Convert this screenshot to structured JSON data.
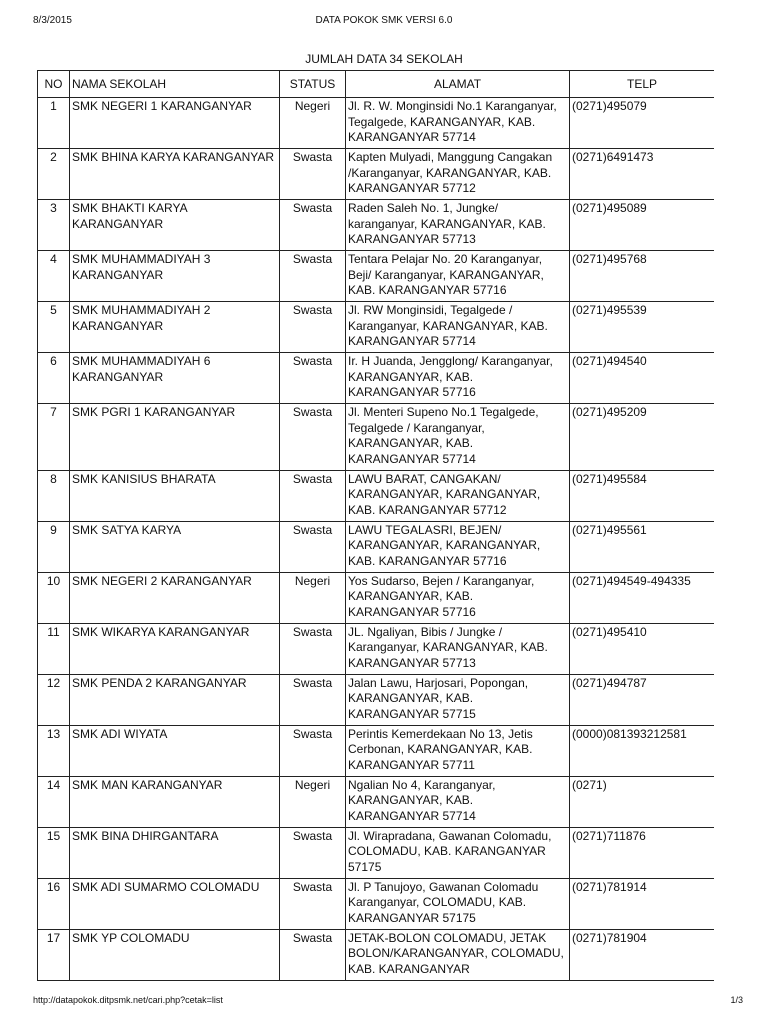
{
  "header": {
    "date": "8/3/2015",
    "title": "DATA POKOK SMK VERSI 6.0"
  },
  "summary": "JUMLAH DATA 34 SEKOLAH",
  "table": {
    "columns": [
      "NO",
      "NAMA SEKOLAH",
      "STATUS",
      "ALAMAT",
      "TELP"
    ],
    "rows": [
      {
        "no": "1",
        "nama": "SMK NEGERI 1 KARANGANYAR",
        "status": "Negeri",
        "alamat": "Jl. R. W. Monginsidi No.1 Karanganyar, Tegalgede, KARANGANYAR, KAB. KARANGANYAR 57714",
        "telp": "(0271)495079"
      },
      {
        "no": "2",
        "nama": "SMK BHINA KARYA KARANGANYAR",
        "status": "Swasta",
        "alamat": "Kapten Mulyadi, Manggung Cangakan /Karanganyar, KARANGANYAR, KAB. KARANGANYAR 57712",
        "telp": "(0271)6491473"
      },
      {
        "no": "3",
        "nama": "SMK BHAKTI KARYA KARANGANYAR",
        "status": "Swasta",
        "alamat": "Raden Saleh No. 1, Jungke/ karanganyar, KARANGANYAR, KAB. KARANGANYAR 57713",
        "telp": "(0271)495089"
      },
      {
        "no": "4",
        "nama": "SMK MUHAMMADIYAH 3 KARANGANYAR",
        "status": "Swasta",
        "alamat": "Tentara Pelajar No. 20 Karanganyar, Beji/ Karanganyar, KARANGANYAR, KAB. KARANGANYAR 57716",
        "telp": "(0271)495768"
      },
      {
        "no": "5",
        "nama": "SMK MUHAMMADIYAH 2 KARANGANYAR",
        "status": "Swasta",
        "alamat": "Jl. RW Monginsidi, Tegalgede / Karanganyar, KARANGANYAR, KAB. KARANGANYAR 57714",
        "telp": "(0271)495539"
      },
      {
        "no": "6",
        "nama": "SMK MUHAMMADIYAH 6 KARANGANYAR",
        "status": "Swasta",
        "alamat": "Ir. H Juanda, Jengglong/ Karanganyar, KARANGANYAR, KAB. KARANGANYAR 57716",
        "telp": "(0271)494540"
      },
      {
        "no": "7",
        "nama": "SMK PGRI 1 KARANGANYAR",
        "status": "Swasta",
        "alamat": "Jl. Menteri Supeno No.1 Tegalgede, Tegalgede / Karanganyar, KARANGANYAR, KAB. KARANGANYAR 57714",
        "telp": "(0271)495209"
      },
      {
        "no": "8",
        "nama": "SMK KANISIUS BHARATA",
        "status": "Swasta",
        "alamat": "LAWU BARAT, CANGAKAN/ KARANGANYAR, KARANGANYAR, KAB. KARANGANYAR 57712",
        "telp": "(0271)495584"
      },
      {
        "no": "9",
        "nama": "SMK SATYA KARYA",
        "status": "Swasta",
        "alamat": "LAWU TEGALASRI, BEJEN/ KARANGANYAR, KARANGANYAR, KAB. KARANGANYAR 57716",
        "telp": "(0271)495561"
      },
      {
        "no": "10",
        "nama": "SMK NEGERI 2 KARANGANYAR",
        "status": "Negeri",
        "alamat": "Yos Sudarso, Bejen / Karanganyar, KARANGANYAR, KAB. KARANGANYAR 57716",
        "telp": "(0271)494549-494335"
      },
      {
        "no": "11",
        "nama": "SMK WIKARYA KARANGANYAR",
        "status": "Swasta",
        "alamat": "JL. Ngaliyan, Bibis / Jungke / Karanganyar, KARANGANYAR, KAB. KARANGANYAR 57713",
        "telp": "(0271)495410"
      },
      {
        "no": "12",
        "nama": "SMK PENDA 2 KARANGANYAR",
        "status": "Swasta",
        "alamat": "Jalan Lawu, Harjosari, Popongan, KARANGANYAR, KAB. KARANGANYAR 57715",
        "telp": "(0271)494787"
      },
      {
        "no": "13",
        "nama": "SMK ADI WIYATA",
        "status": "Swasta",
        "alamat": "Perintis Kemerdekaan No 13, Jetis Cerbonan, KARANGANYAR, KAB. KARANGANYAR 57711",
        "telp": "(0000)081393212581"
      },
      {
        "no": "14",
        "nama": "SMK MAN KARANGANYAR",
        "status": "Negeri",
        "alamat": "Ngalian No 4, Karanganyar, KARANGANYAR, KAB. KARANGANYAR 57714",
        "telp": "(0271)"
      },
      {
        "no": "15",
        "nama": "SMK BINA DHIRGANTARA",
        "status": "Swasta",
        "alamat": "Jl. Wirapradana, Gawanan Colomadu, COLOMADU, KAB. KARANGANYAR 57175",
        "telp": "(0271)711876"
      },
      {
        "no": "16",
        "nama": "SMK ADI SUMARMO COLOMADU",
        "status": "Swasta",
        "alamat": "Jl. P Tanujoyo, Gawanan Colomadu Karanganyar, COLOMADU, KAB. KARANGANYAR 57175",
        "telp": "(0271)781914"
      },
      {
        "no": "17",
        "nama": "SMK YP COLOMADU",
        "status": "Swasta",
        "alamat": "JETAK-BOLON COLOMADU, JETAK BOLON/KARANGANYAR, COLOMADU, KAB. KARANGANYAR",
        "telp": "(0271)781904"
      }
    ]
  },
  "footer": {
    "url": "http://datapokok.ditpsmk.net/cari.php?cetak=list",
    "page": "1/3"
  }
}
